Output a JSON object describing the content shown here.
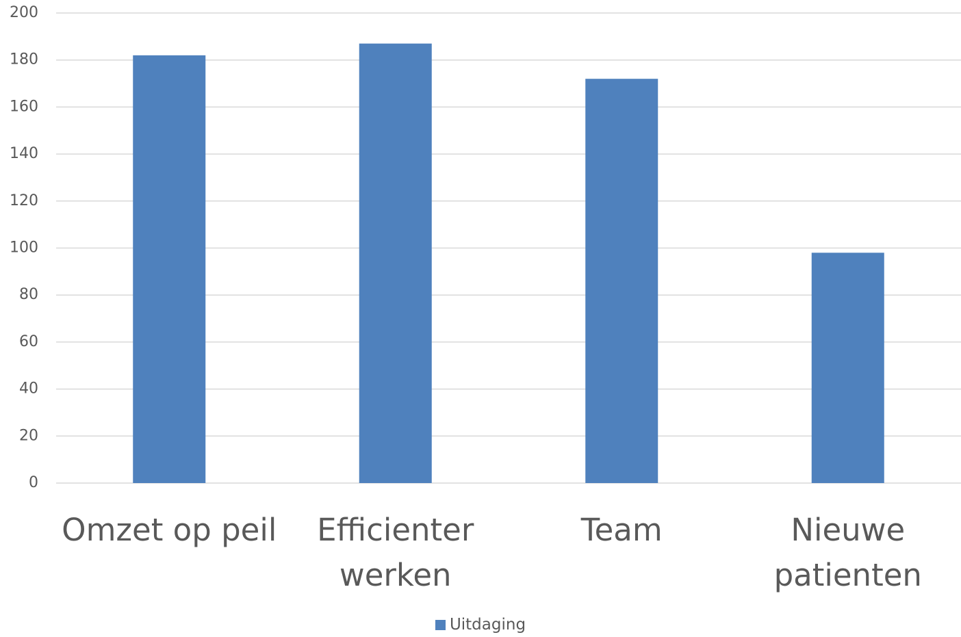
{
  "chart_data": {
    "type": "bar",
    "categories": [
      "Omzet op peil",
      "Efficienter werken",
      "Team",
      "Nieuwe patienten"
    ],
    "series": [
      {
        "name": "Uitdaging",
        "color": "#4f81bd",
        "values": [
          182,
          187,
          172,
          98
        ]
      }
    ],
    "ylim": [
      0,
      200
    ],
    "yticks": [
      0,
      20,
      40,
      60,
      80,
      100,
      120,
      140,
      160,
      180,
      200
    ],
    "grid": true,
    "legend": "bottom"
  }
}
